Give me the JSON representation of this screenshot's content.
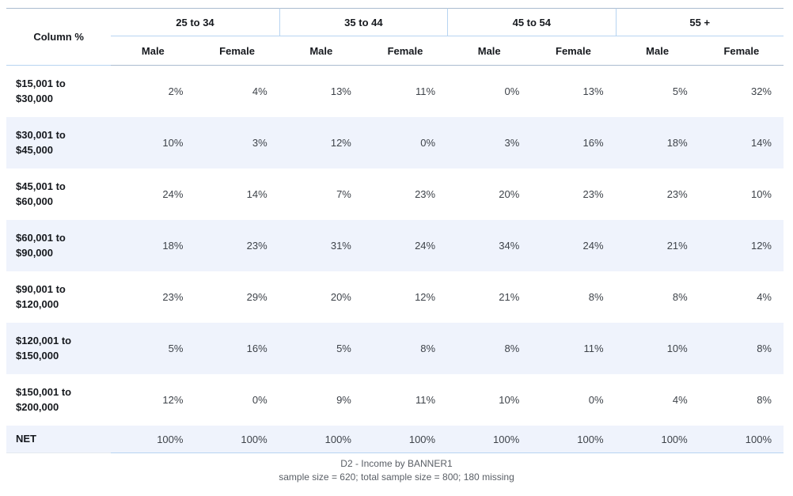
{
  "colors": {
    "stripe": "#eff3fc",
    "border-blue": "#b7d4f1",
    "border-gray": "#aabccf",
    "border-faint": "#e4e9f0",
    "text-dark": "#16191e",
    "text-val": "#3e434a",
    "text-foot": "#5a5f66",
    "bg": "#ffffff"
  },
  "table": {
    "corner_label": "Column %",
    "age_groups": [
      "25 to 34",
      "35 to 44",
      "45 to 54",
      "55 +"
    ],
    "sub_headers": [
      "Male",
      "Female",
      "Male",
      "Female",
      "Male",
      "Female",
      "Male",
      "Female"
    ],
    "rows": [
      {
        "label": "$15,001 to\n$30,000",
        "values": [
          "2%",
          "4%",
          "13%",
          "11%",
          "0%",
          "13%",
          "5%",
          "32%"
        ]
      },
      {
        "label": "$30,001 to\n$45,000",
        "values": [
          "10%",
          "3%",
          "12%",
          "0%",
          "3%",
          "16%",
          "18%",
          "14%"
        ]
      },
      {
        "label": "$45,001 to\n$60,000",
        "values": [
          "24%",
          "14%",
          "7%",
          "23%",
          "20%",
          "23%",
          "23%",
          "10%"
        ]
      },
      {
        "label": "$60,001 to\n$90,000",
        "values": [
          "18%",
          "23%",
          "31%",
          "24%",
          "34%",
          "24%",
          "21%",
          "12%"
        ]
      },
      {
        "label": "$90,001 to\n$120,000",
        "values": [
          "23%",
          "29%",
          "20%",
          "12%",
          "21%",
          "8%",
          "8%",
          "4%"
        ]
      },
      {
        "label": "$120,001 to\n$150,000",
        "values": [
          "5%",
          "16%",
          "5%",
          "8%",
          "8%",
          "11%",
          "10%",
          "8%"
        ]
      },
      {
        "label": "$150,001 to\n$200,000",
        "values": [
          "12%",
          "0%",
          "9%",
          "11%",
          "10%",
          "0%",
          "4%",
          "8%"
        ]
      },
      {
        "label": "NET",
        "values": [
          "100%",
          "100%",
          "100%",
          "100%",
          "100%",
          "100%",
          "100%",
          "100%"
        ]
      }
    ]
  },
  "footer": {
    "title": "D2 - Income by BANNER1",
    "sample_info": "sample size = 620; total sample size = 800; 180 missing"
  },
  "chart_data": {
    "type": "table",
    "title": "D2 - Income by BANNER1",
    "note": "sample size = 620; total sample size = 800; 180 missing",
    "measure": "Column %",
    "column_groups": [
      "25 to 34",
      "35 to 44",
      "45 to 54",
      "55 +"
    ],
    "columns": [
      "25 to 34 Male",
      "25 to 34 Female",
      "35 to 44 Male",
      "35 to 44 Female",
      "45 to 54 Male",
      "45 to 54 Female",
      "55 + Male",
      "55 + Female"
    ],
    "row_labels": [
      "$15,001 to $30,000",
      "$30,001 to $45,000",
      "$45,001 to $60,000",
      "$60,001 to $90,000",
      "$90,001 to $120,000",
      "$120,001 to $150,000",
      "$150,001 to $200,000",
      "NET"
    ],
    "values_percent": [
      [
        2,
        4,
        13,
        11,
        0,
        13,
        5,
        32
      ],
      [
        10,
        3,
        12,
        0,
        3,
        16,
        18,
        14
      ],
      [
        24,
        14,
        7,
        23,
        20,
        23,
        23,
        10
      ],
      [
        18,
        23,
        31,
        24,
        34,
        24,
        21,
        12
      ],
      [
        23,
        29,
        20,
        12,
        21,
        8,
        8,
        4
      ],
      [
        5,
        16,
        5,
        8,
        8,
        11,
        10,
        8
      ],
      [
        12,
        0,
        9,
        11,
        10,
        0,
        4,
        8
      ],
      [
        100,
        100,
        100,
        100,
        100,
        100,
        100,
        100
      ]
    ]
  }
}
